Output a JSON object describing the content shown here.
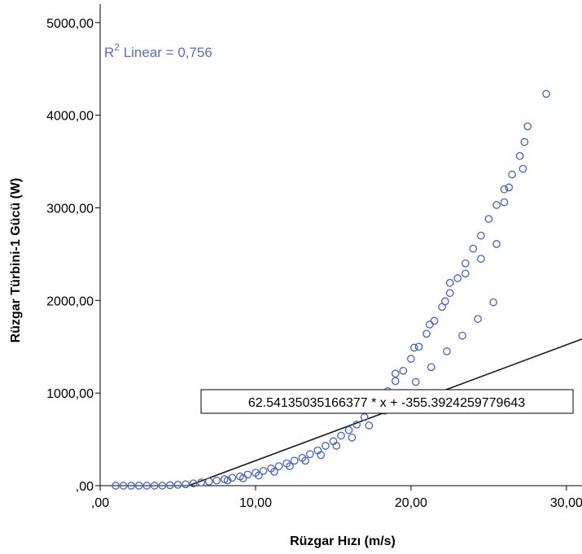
{
  "chart_data": {
    "type": "scatter",
    "xlabel": "Rüzgar Hızı (m/s)",
    "ylabel": "Rüzgar Türbini-1 Gücü (W)",
    "xlim": [
      0,
      31
    ],
    "ylim": [
      0,
      5200
    ],
    "x_ticks": [
      ",00",
      "10,00",
      "20,00",
      "30,00"
    ],
    "y_ticks": [
      ",00",
      "1000,00",
      "2000,00",
      "3000,00",
      "4000,00",
      "5000,00"
    ],
    "x_tick_values": [
      0,
      10,
      20,
      30
    ],
    "y_tick_values": [
      0,
      1000,
      2000,
      3000,
      4000,
      5000
    ],
    "r2_label": "R",
    "r2_sup": "2",
    "r2_text": " Linear = 0,756",
    "fit_equation": "62.54135035166377 * x + -355.3924259779643",
    "fit": {
      "slope": 62.54135035166377,
      "intercept": -355.3924259779643
    },
    "marker_color": "#4a63b8",
    "line_color": "#1a1a1a",
    "series": [
      {
        "points": [
          [
            1.0,
            0
          ],
          [
            1.5,
            0
          ],
          [
            2.0,
            0
          ],
          [
            2.5,
            0
          ],
          [
            3.0,
            0
          ],
          [
            3.5,
            0
          ],
          [
            4.0,
            0
          ],
          [
            4.5,
            5
          ],
          [
            5.0,
            10
          ],
          [
            5.5,
            15
          ],
          [
            6.0,
            25
          ],
          [
            6.5,
            35
          ],
          [
            7.0,
            45
          ],
          [
            7.5,
            55
          ],
          [
            8.0,
            70
          ],
          [
            8.5,
            85
          ],
          [
            9.0,
            100
          ],
          [
            9.5,
            120
          ],
          [
            10.0,
            140
          ],
          [
            10.5,
            160
          ],
          [
            11.0,
            185
          ],
          [
            11.5,
            210
          ],
          [
            12.0,
            240
          ],
          [
            12.5,
            270
          ],
          [
            13.0,
            300
          ],
          [
            13.5,
            340
          ],
          [
            14.0,
            380
          ],
          [
            14.5,
            430
          ],
          [
            15.0,
            480
          ],
          [
            15.5,
            540
          ],
          [
            16.0,
            600
          ],
          [
            16.5,
            660
          ],
          [
            17.0,
            740
          ],
          [
            17.5,
            830
          ],
          [
            18.0,
            920
          ],
          [
            18.5,
            1020
          ],
          [
            19.0,
            1130
          ],
          [
            19.5,
            1240
          ],
          [
            20.0,
            1370
          ],
          [
            20.5,
            1500
          ],
          [
            21.0,
            1640
          ],
          [
            21.5,
            1780
          ],
          [
            22.0,
            1930
          ],
          [
            22.5,
            2080
          ],
          [
            23.0,
            2240
          ],
          [
            23.5,
            2400
          ],
          [
            24.0,
            2560
          ],
          [
            24.5,
            2700
          ],
          [
            25.0,
            2880
          ],
          [
            25.5,
            3030
          ],
          [
            26.0,
            3200
          ],
          [
            26.5,
            3360
          ],
          [
            27.0,
            3560
          ],
          [
            27.5,
            3880
          ],
          [
            28.7,
            4230
          ],
          [
            14.2,
            330
          ],
          [
            15.2,
            430
          ],
          [
            16.2,
            520
          ],
          [
            17.3,
            650
          ],
          [
            18.3,
            810
          ],
          [
            19.3,
            950
          ],
          [
            20.3,
            1120
          ],
          [
            21.3,
            1280
          ],
          [
            22.3,
            1450
          ],
          [
            23.3,
            1620
          ],
          [
            24.3,
            1800
          ],
          [
            25.3,
            1980
          ],
          [
            22.5,
            2190
          ],
          [
            23.5,
            2290
          ],
          [
            24.5,
            2450
          ],
          [
            25.5,
            2610
          ],
          [
            26.0,
            3060
          ],
          [
            26.3,
            3220
          ],
          [
            27.2,
            3420
          ],
          [
            27.3,
            3710
          ],
          [
            19.0,
            1210
          ],
          [
            20.2,
            1490
          ],
          [
            21.2,
            1740
          ],
          [
            22.2,
            1990
          ],
          [
            12.2,
            210
          ],
          [
            13.2,
            270
          ],
          [
            11.2,
            150
          ],
          [
            10.2,
            110
          ],
          [
            9.2,
            80
          ],
          [
            8.2,
            55
          ]
        ]
      }
    ]
  }
}
